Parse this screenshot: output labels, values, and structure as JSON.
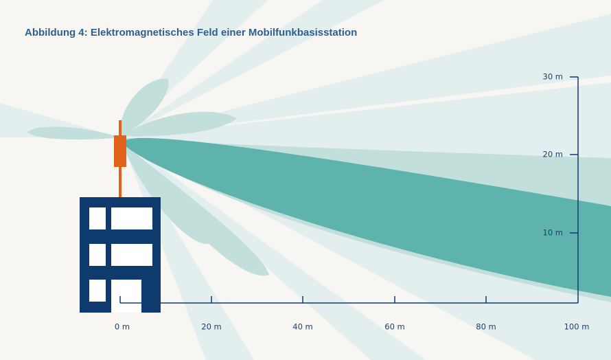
{
  "header": {
    "title": "Abbildung 4: Elektromagnetisches Feld einer Mobilfunkbasisstation"
  },
  "x_axis": {
    "labels": [
      "0 m",
      "20 m",
      "40 m",
      "60 m",
      "80 m",
      "100 m"
    ]
  },
  "y_axis": {
    "labels": [
      "30 m",
      "20 m",
      "10 m"
    ]
  }
}
